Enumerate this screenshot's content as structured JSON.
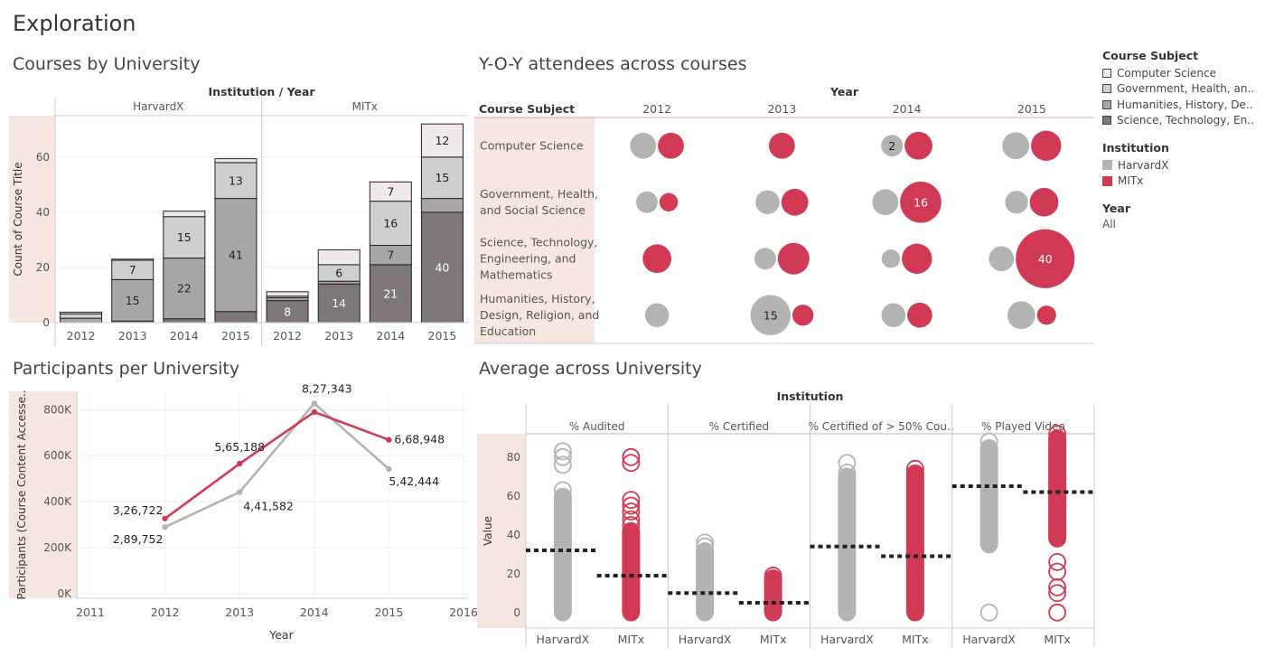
{
  "page_title": "Exploration",
  "colors": {
    "harvard": "#b3b3b1",
    "mit": "#d13a55",
    "subject_cs": "#f1e9e9",
    "subject_gov": "#cfcfcd",
    "subject_hum": "#a8a6a6",
    "subject_sci": "#7f7777",
    "highlight": "#f8e6e0"
  },
  "legend": {
    "subject_title": "Course Subject",
    "subjects": [
      "Computer Science",
      "Government, Health, an..",
      "Humanities, History, De..",
      "Science, Technology, En.."
    ],
    "institution_title": "Institution",
    "institutions": [
      "HarvardX",
      "MITx"
    ],
    "year_title": "Year",
    "year_value": "All"
  },
  "chart_data": [
    {
      "id": "courses",
      "type": "bar",
      "title": "Courses by University",
      "header": "Institution / Year",
      "ylabel": "Count of Course Title",
      "ylim": [
        0,
        75
      ],
      "yticks": [
        0,
        20,
        40,
        60
      ],
      "panels": [
        "HarvardX",
        "MITx"
      ],
      "categories": [
        "2012",
        "2013",
        "2014",
        "2015"
      ],
      "series": [
        {
          "name": "Science, Technology, En..",
          "values": {
            "HarvardX": [
              0,
              0.6,
              1.4,
              4
            ],
            "MITx": [
              8,
              14,
              21,
              40
            ]
          }
        },
        {
          "name": "Humanities, History, De..",
          "values": {
            "HarvardX": [
              1.6,
              15,
              22,
              41
            ],
            "MITx": [
              1,
              1,
              7,
              5
            ]
          }
        },
        {
          "name": "Government, Health, an..",
          "values": {
            "HarvardX": [
              1.6,
              7,
              15,
              13
            ],
            "MITx": [
              0.6,
              6,
              16,
              15
            ]
          }
        },
        {
          "name": "Computer Science",
          "values": {
            "HarvardX": [
              0.6,
              0.4,
              2,
              1.4
            ],
            "MITx": [
              1.6,
              5.4,
              7,
              12
            ]
          }
        }
      ],
      "bar_labels": [
        {
          "panel": "HarvardX",
          "year": "2013",
          "series": 1,
          "text": "15"
        },
        {
          "panel": "HarvardX",
          "year": "2013",
          "series": 2,
          "text": "7"
        },
        {
          "panel": "HarvardX",
          "year": "2014",
          "series": 1,
          "text": "22"
        },
        {
          "panel": "HarvardX",
          "year": "2014",
          "series": 2,
          "text": "15"
        },
        {
          "panel": "HarvardX",
          "year": "2015",
          "series": 1,
          "text": "41"
        },
        {
          "panel": "HarvardX",
          "year": "2015",
          "series": 2,
          "text": "13"
        },
        {
          "panel": "MITx",
          "year": "2012",
          "series": 0,
          "text": "8"
        },
        {
          "panel": "MITx",
          "year": "2013",
          "series": 0,
          "text": "14"
        },
        {
          "panel": "MITx",
          "year": "2013",
          "series": 2,
          "text": "6"
        },
        {
          "panel": "MITx",
          "year": "2014",
          "series": 0,
          "text": "21"
        },
        {
          "panel": "MITx",
          "year": "2014",
          "series": 1,
          "text": "7"
        },
        {
          "panel": "MITx",
          "year": "2014",
          "series": 2,
          "text": "16"
        },
        {
          "panel": "MITx",
          "year": "2014",
          "series": 3,
          "text": "7"
        },
        {
          "panel": "MITx",
          "year": "2015",
          "series": 0,
          "text": "40"
        },
        {
          "panel": "MITx",
          "year": "2015",
          "series": 2,
          "text": "15"
        },
        {
          "panel": "MITx",
          "year": "2015",
          "series": 3,
          "text": "12"
        }
      ]
    },
    {
      "id": "yoy",
      "type": "scatter",
      "title": "Y-O-Y attendees across courses",
      "col_header": "Year",
      "row_header": "Course Subject",
      "years": [
        "2012",
        "2013",
        "2014",
        "2015"
      ],
      "subjects": [
        "Computer Science",
        "Government, Health, and Social Science",
        "Science, Technology, Engineering, and Mathematics",
        "Humanities, History, Design, Religion, and Education"
      ],
      "subject_lines": [
        [
          "Computer Science"
        ],
        [
          "Government, Health,",
          "and Social Science"
        ],
        [
          "Science, Technology,",
          "Engineering, and",
          "Mathematics"
        ],
        [
          "Humanities, History,",
          "Design, Religion, and",
          "Education"
        ]
      ],
      "bubbles": [
        [
          [
            {
              "i": "HarvardX",
              "v": 4
            },
            {
              "i": "MITx",
              "v": 4
            }
          ],
          [
            {
              "i": "MITx",
              "v": 4
            }
          ],
          [
            {
              "i": "HarvardX",
              "v": 2,
              "label": "2"
            },
            {
              "i": "MITx",
              "v": 5
            }
          ],
          [
            {
              "i": "HarvardX",
              "v": 4.5
            },
            {
              "i": "MITx",
              "v": 6.5
            }
          ]
        ],
        [
          [
            {
              "i": "HarvardX",
              "v": 2
            },
            {
              "i": "MITx",
              "v": 1
            }
          ],
          [
            {
              "i": "HarvardX",
              "v": 3
            },
            {
              "i": "MITx",
              "v": 4.5
            }
          ],
          [
            {
              "i": "HarvardX",
              "v": 4
            },
            {
              "i": "MITx",
              "v": 16,
              "label": "16"
            }
          ],
          [
            {
              "i": "HarvardX",
              "v": 2.5
            },
            {
              "i": "MITx",
              "v": 5.5
            }
          ]
        ],
        [
          [
            {
              "i": "MITx",
              "v": 5.5
            }
          ],
          [
            {
              "i": "HarvardX",
              "v": 2
            },
            {
              "i": "MITx",
              "v": 7.5
            }
          ],
          [
            {
              "i": "HarvardX",
              "v": 1
            },
            {
              "i": "MITx",
              "v": 6.5
            }
          ],
          [
            {
              "i": "HarvardX",
              "v": 3.5
            },
            {
              "i": "MITx",
              "v": 40,
              "label": "40"
            }
          ]
        ],
        [
          [
            {
              "i": "HarvardX",
              "v": 3
            }
          ],
          [
            {
              "i": "HarvardX",
              "v": 15,
              "label": "15"
            },
            {
              "i": "MITx",
              "v": 1.8
            }
          ],
          [
            {
              "i": "HarvardX",
              "v": 3
            },
            {
              "i": "MITx",
              "v": 3.5
            }
          ],
          [
            {
              "i": "HarvardX",
              "v": 5
            },
            {
              "i": "MITx",
              "v": 1.2
            }
          ]
        ]
      ]
    },
    {
      "id": "participants",
      "type": "line",
      "title": "Participants per University",
      "xlabel": "Year",
      "ylabel": "Participants (Course Content Accesse..",
      "xlim": [
        2011,
        2016
      ],
      "ylim": [
        -20000,
        880000
      ],
      "xticks": [
        2011,
        2012,
        2013,
        2014,
        2015,
        2016
      ],
      "yticks": [
        0,
        200000,
        400000,
        600000,
        800000
      ],
      "ytick_labels": [
        "0K",
        "200K",
        "400K",
        "600K",
        "800K"
      ],
      "x": [
        2012,
        2013,
        2014,
        2015
      ],
      "series": [
        {
          "name": "MITx",
          "values": [
            326722,
            565188,
            790000,
            668948
          ],
          "labels": [
            "3,26,722",
            "5,65,188",
            "",
            "6,68,948"
          ]
        },
        {
          "name": "HarvardX",
          "values": [
            289752,
            441582,
            827343,
            542444
          ],
          "labels": [
            "2,89,752",
            "4,41,582",
            "8,27,343",
            "5,42,444"
          ]
        }
      ]
    },
    {
      "id": "average",
      "type": "scatter",
      "title": "Average across University",
      "header": "Institution",
      "ylabel": "Value",
      "ylim": [
        -8,
        92
      ],
      "yticks": [
        0,
        20,
        40,
        60,
        80
      ],
      "panels": [
        "% Audited",
        "% Certified",
        "% Certified of > 50% Cou..",
        "% Played Video"
      ],
      "institutions": [
        "HarvardX",
        "MITx"
      ],
      "averages": [
        [
          32,
          19
        ],
        [
          10,
          5
        ],
        [
          34,
          29
        ],
        [
          65,
          62
        ]
      ],
      "ranges": [
        [
          [
            0,
            60
          ],
          [
            0,
            42
          ]
        ],
        [
          [
            0,
            32
          ],
          [
            0,
            18
          ]
        ],
        [
          [
            0,
            70
          ],
          [
            0,
            72
          ]
        ],
        [
          [
            35,
            85
          ],
          [
            38,
            90
          ]
        ]
      ],
      "outliers": [
        [
          [
            63,
            76,
            80,
            83
          ],
          [
            45,
            48,
            52,
            55,
            58,
            77,
            80
          ]
        ],
        [
          [
            34,
            36
          ],
          [
            19
          ]
        ],
        [
          [
            72,
            77
          ],
          [
            74
          ]
        ],
        [
          [
            0,
            40,
            88
          ],
          [
            0,
            10,
            13,
            21,
            26,
            92
          ]
        ]
      ]
    }
  ]
}
